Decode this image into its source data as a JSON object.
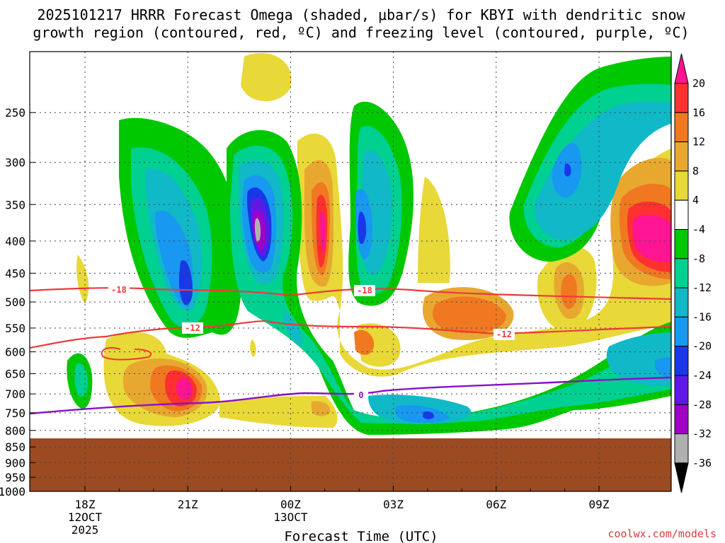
{
  "chart_data": {
    "type": "heatmap",
    "title_line1": "2025101217 HRRR Forecast Omega (shaded, μbar/s) for KBYI with dendritic snow",
    "title_line2": "growth region (contoured, red, ºC) and freezing level (contoured, purple, ºC)",
    "xlabel": "Forecast Time (UTC)",
    "credit": "coolwx.com/models",
    "y_ticks": [
      "250",
      "300",
      "350",
      "400",
      "450",
      "500",
      "550",
      "600",
      "650",
      "700",
      "750",
      "800",
      "850",
      "900",
      "950",
      "1000"
    ],
    "x_ticks": [
      {
        "label": "18Z",
        "sub1": "12OCT",
        "sub2": "2025"
      },
      {
        "label": "21Z",
        "sub1": "",
        "sub2": ""
      },
      {
        "label": "00Z",
        "sub1": "13OCT",
        "sub2": ""
      },
      {
        "label": "03Z",
        "sub1": "",
        "sub2": ""
      },
      {
        "label": "06Z",
        "sub1": "",
        "sub2": ""
      },
      {
        "label": "09Z",
        "sub1": "",
        "sub2": ""
      }
    ],
    "colorbar_labels": [
      "20",
      "16",
      "12",
      "8",
      "4",
      "-4",
      "-8",
      "-12",
      "-16",
      "-20",
      "-24",
      "-28",
      "-32",
      "-36"
    ],
    "colorbar_colors": [
      "#ff1493",
      "#ff3030",
      "#f07820",
      "#e8a830",
      "#e8d838",
      "#ffffff",
      "#00c800",
      "#00d090",
      "#10b8c8",
      "#1898f0",
      "#1838e8",
      "#6018e8",
      "#a000c8",
      "#b0b0b0",
      "#000000"
    ],
    "contour_labels": {
      "dgz_top": "-18",
      "dgz_top_2": "-18",
      "dgz_bottom": "-12",
      "dgz_bottom_2": "-12",
      "freezing": "0"
    },
    "pressure_range": [
      200,
      1000
    ],
    "ground_pressure": 865
  }
}
